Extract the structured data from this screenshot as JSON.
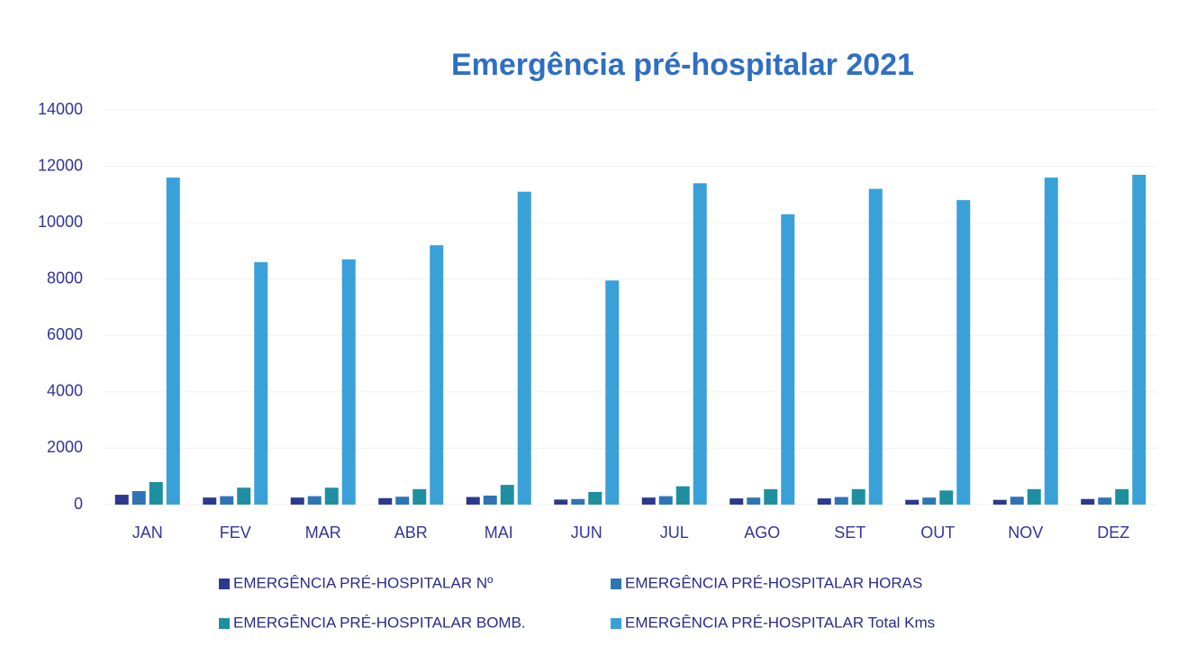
{
  "chart_data": {
    "type": "bar",
    "title": "Emergência pré-hospitalar 2021",
    "categories": [
      "JAN",
      "FEV",
      "MAR",
      "ABR",
      "MAI",
      "JUN",
      "JUL",
      "AGO",
      "SET",
      "OUT",
      "NOV",
      "DEZ"
    ],
    "series": [
      {
        "name": "EMERGÊNCIA PRÉ-HOSPITALAR Nº",
        "color": "#2b3990",
        "values": [
          350,
          250,
          250,
          230,
          270,
          180,
          250,
          220,
          220,
          170,
          170,
          200
        ]
      },
      {
        "name": "EMERGÊNCIA PRÉ-HOSPITALAR HORAS",
        "color": "#2e75b6",
        "values": [
          480,
          300,
          300,
          280,
          320,
          200,
          300,
          250,
          270,
          250,
          280,
          250
        ]
      },
      {
        "name": "EMERGÊNCIA PRÉ-HOSPITALAR BOMB.",
        "color": "#1f8f9f",
        "values": [
          800,
          600,
          600,
          550,
          700,
          450,
          650,
          550,
          550,
          500,
          550,
          550
        ]
      },
      {
        "name": "EMERGÊNCIA PRÉ-HOSPITALAR Total Kms",
        "color": "#3aa0d8",
        "values": [
          11600,
          8600,
          8700,
          9200,
          11100,
          7950,
          11400,
          10300,
          11200,
          10800,
          11600,
          11700
        ]
      }
    ],
    "ylim": [
      0,
      14000
    ],
    "yticks": [
      0,
      2000,
      4000,
      6000,
      8000,
      10000,
      12000,
      14000
    ],
    "grid": true
  }
}
